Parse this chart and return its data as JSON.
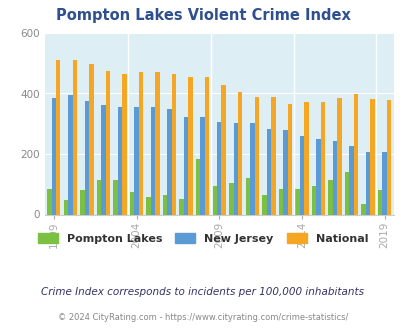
{
  "title": "Pompton Lakes Violent Crime Index",
  "subtitle": "Crime Index corresponds to incidents per 100,000 inhabitants",
  "footer": "© 2024 CityRating.com - https://www.cityrating.com/crime-statistics/",
  "years": [
    1999,
    2000,
    2001,
    2002,
    2003,
    2004,
    2005,
    2006,
    2007,
    2008,
    2009,
    2010,
    2011,
    2012,
    2013,
    2014,
    2015,
    2016,
    2017,
    2018,
    2019
  ],
  "pompton_lakes": [
    85,
    48,
    80,
    115,
    115,
    75,
    58,
    65,
    50,
    185,
    95,
    105,
    120,
    63,
    85,
    85,
    95,
    115,
    140,
    35,
    80
  ],
  "new_jersey": [
    385,
    395,
    375,
    362,
    357,
    355,
    355,
    350,
    323,
    323,
    305,
    302,
    302,
    283,
    278,
    260,
    250,
    242,
    225,
    207,
    207
  ],
  "national": [
    510,
    510,
    497,
    475,
    463,
    470,
    470,
    465,
    455,
    455,
    428,
    404,
    390,
    390,
    365,
    373,
    373,
    385,
    398,
    383,
    380
  ],
  "xticks": [
    1999,
    2004,
    2009,
    2014,
    2019
  ],
  "ylim": [
    0,
    600
  ],
  "yticks": [
    0,
    200,
    400,
    600
  ],
  "color_pompton": "#7bc043",
  "color_nj": "#5b9bd5",
  "color_national": "#f5a623",
  "background_color": "#deeef5",
  "title_color": "#2f4f8f",
  "subtitle_color": "#333366",
  "footer_color": "#888888",
  "legend_label_pompton": "Pompton Lakes",
  "legend_label_nj": "New Jersey",
  "legend_label_national": "National"
}
